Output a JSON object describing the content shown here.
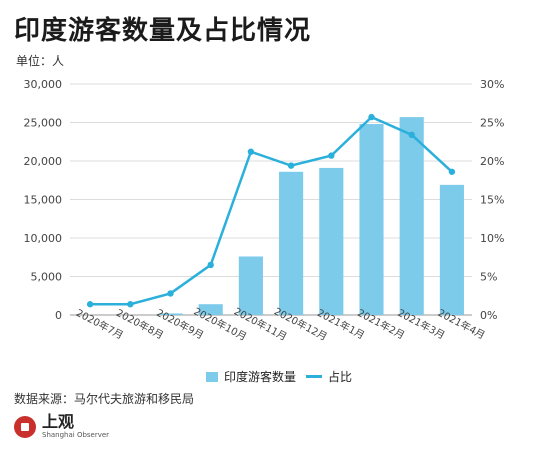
{
  "title": "印度游客数量及占比情况",
  "unit": "单位：人",
  "source": "数据来源：马尔代夫旅游和移民局",
  "logo": {
    "cn": "上观",
    "en": "Shanghai Observer"
  },
  "colors": {
    "bar": "#7ccbea",
    "line": "#2bb0db",
    "grid": "#dcdcdc"
  },
  "chart_data": {
    "type": "bar",
    "categories": [
      "2020年7月",
      "2020年8月",
      "2020年9月",
      "2020年10月",
      "2020年11月",
      "2020年12月",
      "2021年1月",
      "2021年2月",
      "2021年3月",
      "2021年4月"
    ],
    "series": [
      {
        "name": "印度游客数量",
        "type": "bar",
        "axis": "left",
        "values": [
          0,
          0,
          200,
          1400,
          7600,
          18600,
          19100,
          24800,
          25700,
          16900
        ]
      },
      {
        "name": "占比",
        "type": "line",
        "axis": "right",
        "values": [
          0.014,
          0.014,
          0.028,
          0.065,
          0.212,
          0.194,
          0.207,
          0.257,
          0.234,
          0.186
        ]
      }
    ],
    "ylim": [
      0,
      30000
    ],
    "y2lim": [
      0,
      0.3
    ],
    "yticks": [
      "0",
      "5,000",
      "10,000",
      "15,000",
      "20,000",
      "25,000",
      "30,000"
    ],
    "y2ticks": [
      "0%",
      "5%",
      "10%",
      "15%",
      "20%",
      "25%",
      "30%"
    ],
    "legend": "bottom",
    "grid": true
  }
}
